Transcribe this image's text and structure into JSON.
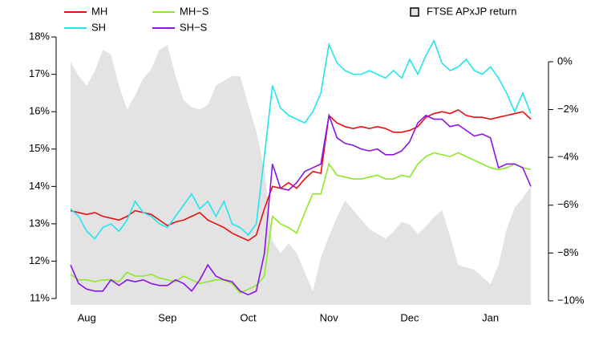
{
  "chart_data": {
    "type": "line",
    "categories": [
      null,
      null,
      "Aug",
      null,
      null,
      null,
      null,
      null,
      null,
      null,
      null,
      null,
      "Sep",
      null,
      null,
      null,
      null,
      null,
      null,
      null,
      null,
      null,
      "Oct",
      null,
      null,
      null,
      null,
      null,
      null,
      null,
      null,
      null,
      "Nov",
      null,
      null,
      null,
      null,
      null,
      null,
      null,
      null,
      null,
      "Dec",
      null,
      null,
      null,
      null,
      null,
      null,
      null,
      null,
      null,
      "Jan",
      null,
      null,
      null,
      null,
      null
    ],
    "series": [
      {
        "name": "FTSE APxJP return",
        "type": "area",
        "axis": "y2",
        "color": "#e3e3e3",
        "values": [
          0.0,
          -0.6,
          -1.0,
          -0.4,
          0.5,
          0.3,
          -1.0,
          -2.0,
          -1.4,
          -0.7,
          -0.3,
          0.5,
          0.7,
          -0.6,
          -1.6,
          -1.9,
          -2.0,
          -1.8,
          -1.0,
          -0.8,
          -0.6,
          -0.6,
          -1.8,
          -2.9,
          -4.5,
          -7.5,
          -8.0,
          -7.6,
          -8.0,
          -8.8,
          -9.6,
          -8.2,
          -7.3,
          -6.5,
          -5.8,
          -6.2,
          -6.6,
          -7.0,
          -7.2,
          -7.4,
          -7.1,
          -6.7,
          -6.8,
          -7.2,
          -6.9,
          -6.5,
          -6.2,
          -7.3,
          -8.5,
          -8.6,
          -8.7,
          -9.0,
          -9.3,
          -8.5,
          -7.0,
          -6.1,
          -5.7,
          -5.2
        ]
      },
      {
        "name": "MH",
        "color": "#e81010",
        "values": [
          13.35,
          13.3,
          13.25,
          13.3,
          13.2,
          13.15,
          13.1,
          13.2,
          13.35,
          13.3,
          13.25,
          13.1,
          12.95,
          13.05,
          13.1,
          13.2,
          13.3,
          13.1,
          13.0,
          12.9,
          12.75,
          12.65,
          12.55,
          12.7,
          13.4,
          14.0,
          13.95,
          14.1,
          13.95,
          14.2,
          14.4,
          14.35,
          15.9,
          15.7,
          15.6,
          15.55,
          15.6,
          15.55,
          15.6,
          15.55,
          15.45,
          15.45,
          15.5,
          15.6,
          15.85,
          15.95,
          16.0,
          15.95,
          16.05,
          15.9,
          15.85,
          15.85,
          15.8,
          15.85,
          15.9,
          15.95,
          16.0,
          15.8
        ]
      },
      {
        "name": "SH",
        "color": "#22e4ee",
        "values": [
          13.4,
          13.2,
          12.8,
          12.6,
          12.9,
          13.0,
          12.8,
          13.1,
          13.6,
          13.3,
          13.2,
          13.0,
          12.9,
          13.2,
          13.5,
          13.8,
          13.4,
          13.6,
          13.2,
          13.6,
          13.0,
          12.9,
          12.7,
          13.0,
          14.8,
          16.7,
          16.1,
          15.9,
          15.8,
          15.7,
          16.0,
          16.5,
          17.8,
          17.3,
          17.1,
          17.0,
          17.0,
          17.1,
          17.0,
          16.9,
          17.1,
          16.9,
          17.4,
          17.0,
          17.5,
          17.9,
          17.3,
          17.1,
          17.2,
          17.4,
          17.1,
          17.0,
          17.2,
          16.9,
          16.5,
          16.0,
          16.5,
          15.95
        ]
      },
      {
        "name": "MH−S",
        "color": "#8ee82a",
        "values": [
          11.65,
          11.5,
          11.5,
          11.45,
          11.5,
          11.5,
          11.45,
          11.7,
          11.6,
          11.6,
          11.65,
          11.55,
          11.5,
          11.45,
          11.6,
          11.5,
          11.4,
          11.45,
          11.5,
          11.5,
          11.4,
          11.15,
          11.25,
          11.35,
          11.6,
          13.2,
          13.0,
          12.9,
          12.75,
          13.3,
          13.8,
          13.8,
          14.6,
          14.3,
          14.25,
          14.2,
          14.2,
          14.25,
          14.3,
          14.2,
          14.2,
          14.3,
          14.25,
          14.6,
          14.8,
          14.9,
          14.85,
          14.8,
          14.9,
          14.8,
          14.7,
          14.6,
          14.5,
          14.45,
          14.5,
          14.6,
          14.5,
          14.45
        ]
      },
      {
        "name": "SH−S",
        "color": "#8a14e8",
        "values": [
          11.9,
          11.4,
          11.25,
          11.2,
          11.2,
          11.5,
          11.35,
          11.5,
          11.45,
          11.5,
          11.4,
          11.35,
          11.35,
          11.5,
          11.4,
          11.2,
          11.5,
          11.9,
          11.6,
          11.5,
          11.45,
          11.2,
          11.1,
          11.2,
          12.2,
          14.6,
          13.95,
          13.9,
          14.1,
          14.4,
          14.5,
          14.6,
          15.9,
          15.3,
          15.15,
          15.1,
          15.0,
          14.95,
          15.0,
          14.85,
          14.85,
          14.95,
          15.2,
          15.7,
          15.9,
          15.8,
          15.8,
          15.6,
          15.65,
          15.5,
          15.35,
          15.4,
          15.3,
          14.5,
          14.6,
          14.6,
          14.5,
          14.0
        ]
      }
    ],
    "ylim": [
      10.83,
      18.13
    ],
    "yticks": [
      {
        "value": 11,
        "label": "11%"
      },
      {
        "value": 12,
        "label": "12%"
      },
      {
        "value": 13,
        "label": "13%"
      },
      {
        "value": 14,
        "label": "14%"
      },
      {
        "value": 15,
        "label": "15%"
      },
      {
        "value": 16,
        "label": "16%"
      },
      {
        "value": 17,
        "label": "17%"
      },
      {
        "value": 18,
        "label": "18%"
      }
    ],
    "y2lim": [
      -10.17,
      1.24
    ],
    "y2ticks": [
      {
        "value": 0,
        "label": "0%"
      },
      {
        "value": -2,
        "label": "−2%"
      },
      {
        "value": -4,
        "label": "−4%"
      },
      {
        "value": -6,
        "label": "−6%"
      },
      {
        "value": -8,
        "label": "−8%"
      },
      {
        "value": -10,
        "label": "−10%"
      }
    ]
  }
}
